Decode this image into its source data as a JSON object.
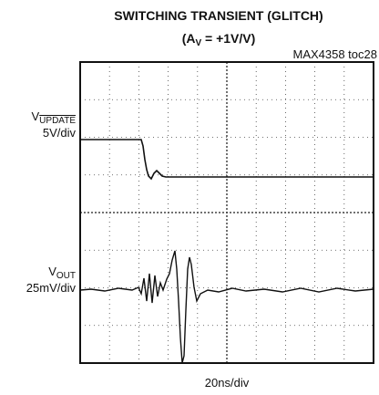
{
  "title": "SWITCHING TRANSIENT (GLITCH)",
  "subtitle": {
    "prefix": "(A",
    "sub": "V",
    "suffix": " = +1V/V)"
  },
  "figure_id": "MAX4358 toc28",
  "channels": [
    {
      "name": "V",
      "sub": "UPDATE",
      "scale": "5V/div"
    },
    {
      "name": "V",
      "sub": "OUT",
      "scale": "25mV/div"
    }
  ],
  "time_scale": "20ns/div"
}
